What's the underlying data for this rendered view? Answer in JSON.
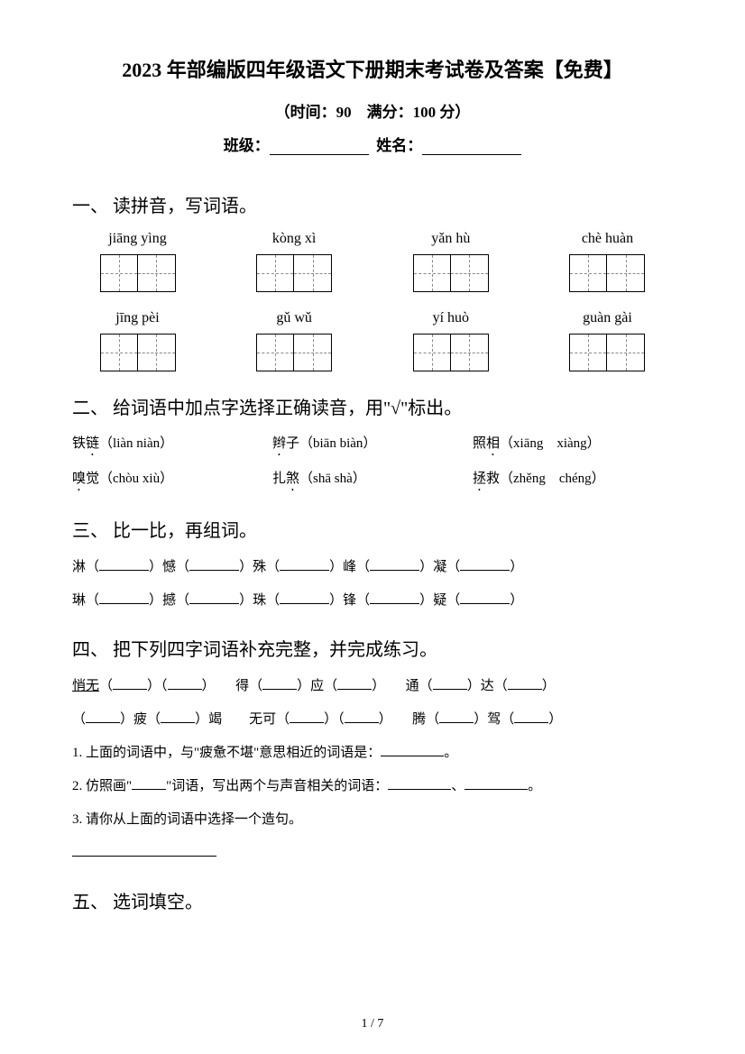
{
  "header": {
    "title": "2023 年部编版四年级语文下册期末考试卷及答案【免费】",
    "subtitle": "（时间：90　满分：100 分）",
    "class_label": "班级：",
    "name_label": "姓名："
  },
  "q1": {
    "heading": "一、 读拼音，写词语。",
    "row1": [
      "jiāng yìng",
      "kòng xì",
      "yǎn hù",
      "chè huàn"
    ],
    "row2": [
      "jīng pèi",
      "gǔ wǔ",
      "yí huò",
      "guàn gài"
    ]
  },
  "q2": {
    "heading": "二、 给词语中加点字选择正确读音，用\"√\"标出。",
    "items": [
      [
        "铁链（liàn niàn）",
        "辫子（biān biàn）",
        "照相（xiāng　xiàng）"
      ],
      [
        "嗅觉（chòu xiù）",
        "扎煞（shā shà）",
        "拯救（zhěng　chéng）"
      ]
    ]
  },
  "q3": {
    "heading": "三、 比一比，再组词。",
    "line1_chars": [
      "淋",
      "憾",
      "殊",
      "峰",
      "凝"
    ],
    "line2_chars": [
      "琳",
      "撼",
      "珠",
      "锋",
      "疑"
    ]
  },
  "q4": {
    "heading": "四、 把下列四字词语补充完整，并完成练习。",
    "line1_prefix": "悄无",
    "line1_b": "得",
    "line1_c": "应",
    "line1_d": "通",
    "line1_e": "达",
    "line2_a": "疲",
    "line2_b": "竭",
    "line2_c": "无可",
    "line2_d": "腾",
    "line2_e": "驾",
    "sub1": "1. 上面的词语中，与\"疲惫不堪\"意思相近的词语是：",
    "sub1_end": "。",
    "sub2_a": "2. 仿照画\"",
    "sub2_b": "\"词语，写出两个与声音相关的词语：",
    "sub2_end": "。",
    "sub3": "3. 请你从上面的词语中选择一个造句。"
  },
  "q5": {
    "heading": "五、 选词填空。"
  },
  "footer": {
    "page": "1 / 7"
  }
}
